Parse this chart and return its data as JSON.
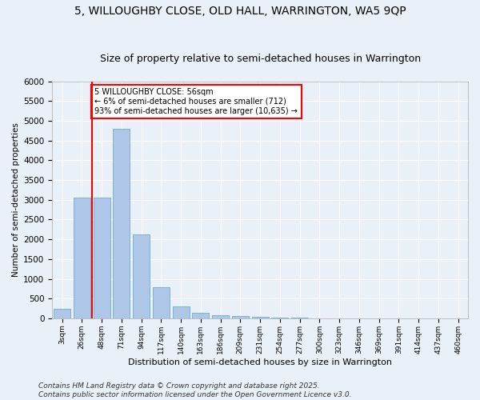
{
  "title1": "5, WILLOUGHBY CLOSE, OLD HALL, WARRINGTON, WA5 9QP",
  "title2": "Size of property relative to semi-detached houses in Warrington",
  "xlabel": "Distribution of semi-detached houses by size in Warrington",
  "ylabel": "Number of semi-detached properties",
  "categories": [
    "3sqm",
    "26sqm",
    "48sqm",
    "71sqm",
    "94sqm",
    "117sqm",
    "140sqm",
    "163sqm",
    "186sqm",
    "209sqm",
    "231sqm",
    "254sqm",
    "277sqm",
    "300sqm",
    "323sqm",
    "346sqm",
    "369sqm",
    "391sqm",
    "414sqm",
    "437sqm",
    "460sqm"
  ],
  "values": [
    240,
    3050,
    3050,
    4800,
    2120,
    790,
    310,
    140,
    75,
    50,
    30,
    20,
    10,
    5,
    3,
    2,
    1,
    0,
    0,
    0,
    0
  ],
  "bar_color": "#aec6e8",
  "bar_edge_color": "#6aaed6",
  "vline_x_idx": 2,
  "vline_color": "red",
  "annotation_text": "5 WILLOUGHBY CLOSE: 56sqm\n← 6% of semi-detached houses are smaller (712)\n93% of semi-detached houses are larger (10,635) →",
  "annotation_box_color": "white",
  "annotation_box_edge": "red",
  "ylim": [
    0,
    6000
  ],
  "yticks": [
    0,
    500,
    1000,
    1500,
    2000,
    2500,
    3000,
    3500,
    4000,
    4500,
    5000,
    5500,
    6000
  ],
  "footer": "Contains HM Land Registry data © Crown copyright and database right 2025.\nContains public sector information licensed under the Open Government Licence v3.0.",
  "bg_color": "#eaf0f8",
  "plot_bg_color": "#eaf0f8",
  "grid_color": "white",
  "title_fontsize": 10,
  "subtitle_fontsize": 9,
  "footer_fontsize": 6.5
}
